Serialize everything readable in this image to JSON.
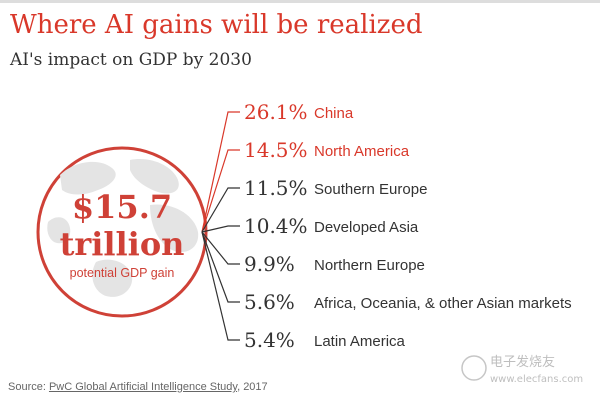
{
  "title": "Where AI gains will be realized",
  "subtitle": "AI's impact on GDP by 2030",
  "colors": {
    "accent": "#d9382a",
    "text": "#333333",
    "globe": "#cf4137"
  },
  "center": {
    "amount": "$15.7",
    "unit": "trillion",
    "caption": "potential GDP gain"
  },
  "chart_data": {
    "type": "table",
    "title": "AI's impact on GDP by 2030",
    "total": {
      "value": 15.7,
      "unit": "trillion USD",
      "label": "potential GDP gain"
    },
    "rows": [
      {
        "label": "China",
        "value": 26.1,
        "display": "26.1%",
        "highlight": true
      },
      {
        "label": "North America",
        "value": 14.5,
        "display": "14.5%",
        "highlight": true
      },
      {
        "label": "Southern Europe",
        "value": 11.5,
        "display": "11.5%",
        "highlight": false
      },
      {
        "label": "Developed Asia",
        "value": 10.4,
        "display": "10.4%",
        "highlight": false
      },
      {
        "label": "Northern Europe",
        "value": 9.9,
        "display": "9.9%",
        "highlight": false
      },
      {
        "label": "Africa, Oceania, & other Asian markets",
        "value": 5.6,
        "display": "5.6%",
        "highlight": false
      },
      {
        "label": "Latin America",
        "value": 5.4,
        "display": "5.4%",
        "highlight": false
      }
    ]
  },
  "source": {
    "prefix": "Source: ",
    "link_text": "PwC Global Artificial Intelligence Study",
    "suffix": ", 2017"
  },
  "watermark": {
    "line1": "电子发烧友",
    "line2": "www.elecfans.com"
  }
}
